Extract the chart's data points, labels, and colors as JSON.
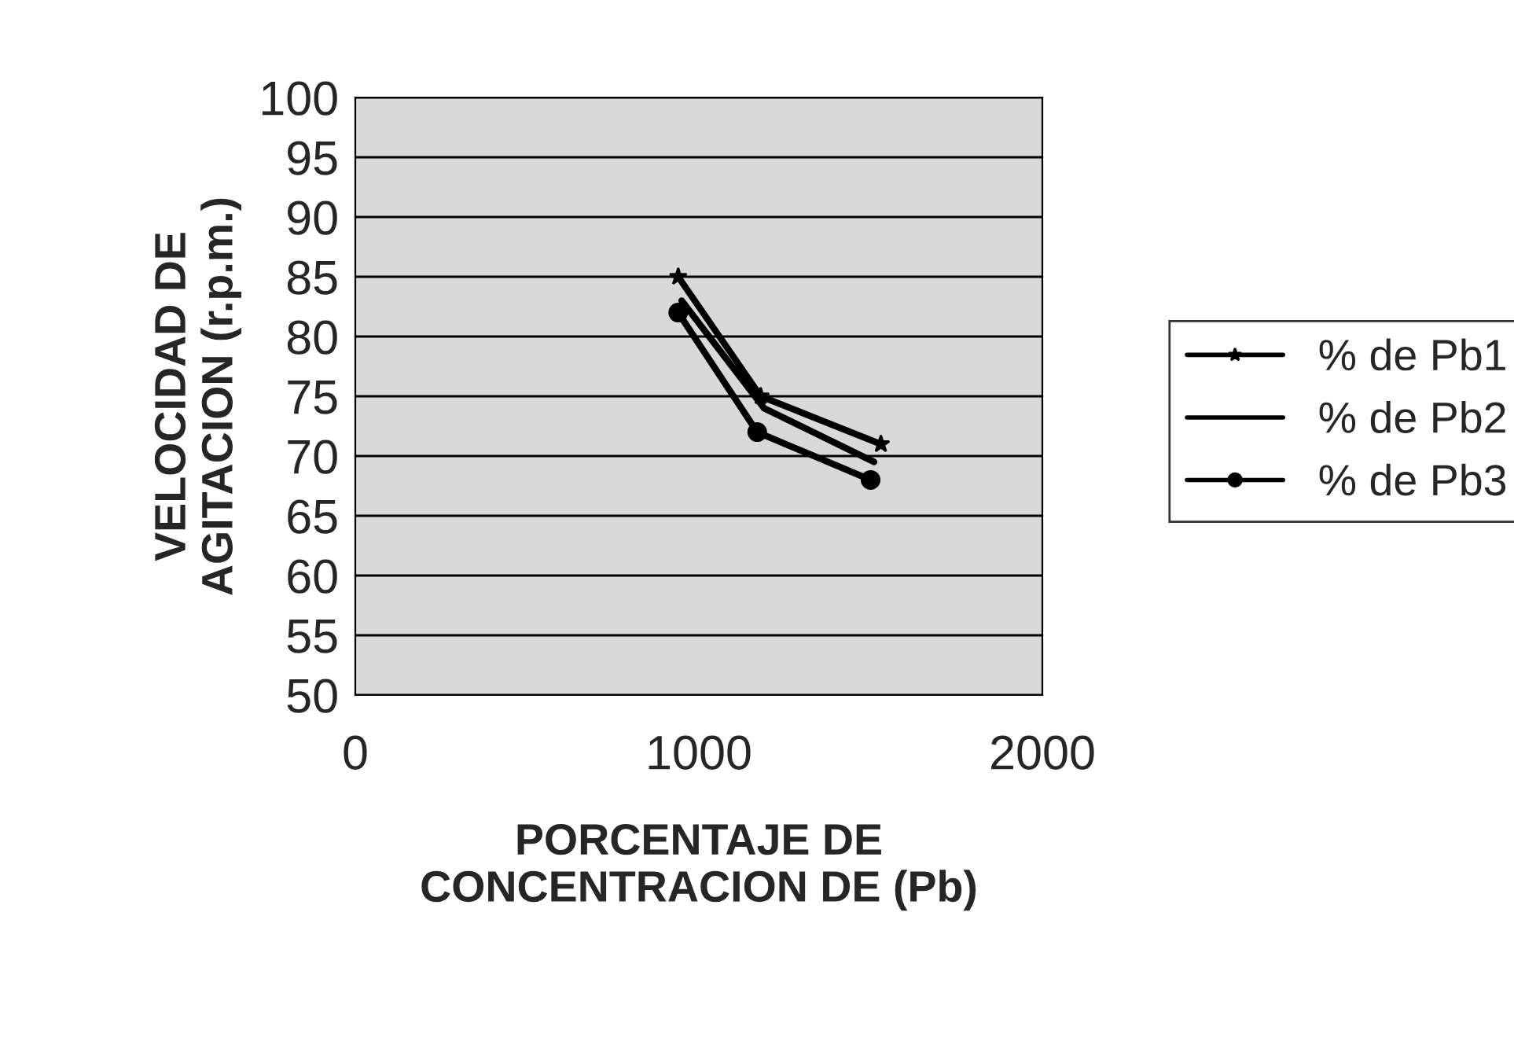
{
  "chart_data": {
    "type": "line",
    "xlabel": "PORCENTAJE DE\nCONCENTRACION DE (Pb)",
    "ylabel": "VELOCIDAD DE\nAGITACION (r.p.m.)",
    "series": [
      {
        "name": "% de Pb1",
        "color": "#000000",
        "marker": "star",
        "x": [
          940,
          1180,
          1530
        ],
        "values": [
          85,
          75,
          71
        ]
      },
      {
        "name": "% de Pb2",
        "color": "#000000",
        "marker": "none",
        "x": [
          950,
          1190,
          1510
        ],
        "values": [
          83,
          74,
          69.5
        ]
      },
      {
        "name": "% de Pb3",
        "color": "#000000",
        "marker": "circle",
        "x": [
          940,
          1170,
          1500
        ],
        "values": [
          82,
          72,
          68
        ]
      }
    ],
    "xlim": [
      0,
      2000
    ],
    "xticks": [
      0,
      1000,
      2000
    ],
    "ylim": [
      50,
      100
    ],
    "yticks": [
      50,
      55,
      60,
      65,
      70,
      75,
      80,
      85,
      90,
      95,
      100
    ],
    "grid": "y",
    "legend": "right",
    "line_style": "solid"
  }
}
